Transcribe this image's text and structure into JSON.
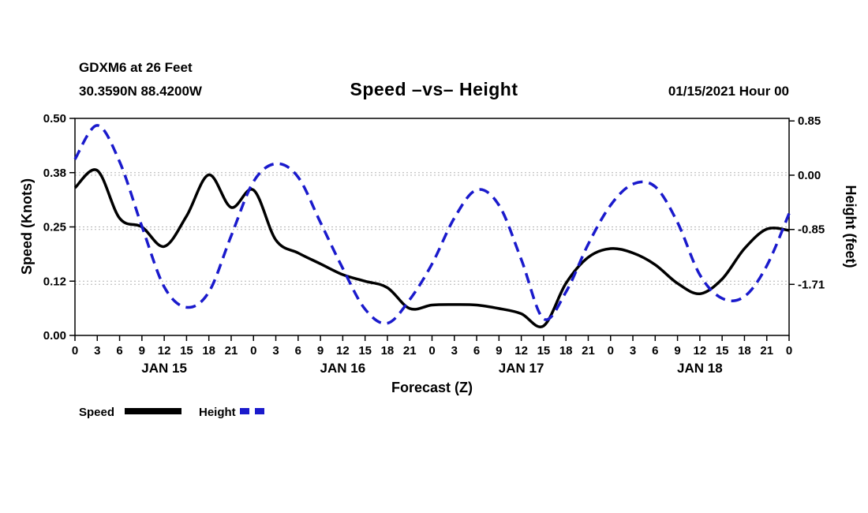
{
  "header": {
    "station_line1": "GDXM6 at 26 Feet",
    "station_line2": "30.3590N 88.4200W",
    "title": "Speed –vs– Height",
    "datetime": "01/15/2021 Hour 00"
  },
  "legend": {
    "speed_label": "Speed",
    "height_label": "Height"
  },
  "colors": {
    "speed": "#000000",
    "height": "#1a1acc",
    "grid": "#b3b3b3",
    "axis": "#000000"
  },
  "chart_data": {
    "type": "line",
    "title": "Speed –vs– Height",
    "xlabel": "Forecast (Z)",
    "ylabel_left": "Speed (Knots)",
    "ylabel_right": "Height (feet)",
    "x_hours": [
      0,
      3,
      6,
      9,
      12,
      15,
      18,
      21,
      24,
      27,
      30,
      33,
      36,
      39,
      42,
      45,
      48,
      51,
      54,
      57,
      60,
      63,
      66,
      69,
      72,
      75,
      78,
      81,
      84,
      87,
      90,
      93,
      96
    ],
    "x_tick_labels": [
      "0",
      "3",
      "6",
      "9",
      "12",
      "15",
      "18",
      "21",
      "0",
      "3",
      "6",
      "9",
      "12",
      "15",
      "18",
      "21",
      "0",
      "3",
      "6",
      "9",
      "12",
      "15",
      "18",
      "21",
      "0",
      "3",
      "6",
      "9",
      "12",
      "15",
      "18",
      "21",
      "0"
    ],
    "day_labels": [
      {
        "label": "JAN 15",
        "hour": 12
      },
      {
        "label": "JAN 16",
        "hour": 36
      },
      {
        "label": "JAN 17",
        "hour": 60
      },
      {
        "label": "JAN 18",
        "hour": 84
      }
    ],
    "left_axis": {
      "min": 0.0,
      "max": 0.5,
      "tick_values": [
        0.0,
        0.125,
        0.25,
        0.375,
        0.5
      ],
      "tick_labels": [
        "0.00",
        "0.12",
        "0.25",
        "0.38",
        "0.50"
      ],
      "grid_tick_values": [
        0.125,
        0.25,
        0.375
      ]
    },
    "right_axis": {
      "min": -2.51,
      "max": 0.89,
      "tick_values": [
        0.85,
        0.0,
        -0.85,
        -1.71
      ],
      "tick_labels": [
        "0.85",
        "0.00",
        "-0.85",
        "-1.71"
      ],
      "grid_tick_values": [
        0.0,
        -0.85,
        -1.71
      ]
    },
    "series": [
      {
        "name": "Speed",
        "axis": "left",
        "style": "solid",
        "color": "#000000",
        "values": [
          0.34,
          0.38,
          0.27,
          0.25,
          0.205,
          0.275,
          0.37,
          0.295,
          0.335,
          0.22,
          0.19,
          0.165,
          0.14,
          0.125,
          0.11,
          0.062,
          0.07,
          0.071,
          0.07,
          0.062,
          0.05,
          0.022,
          0.12,
          0.18,
          0.2,
          0.19,
          0.163,
          0.12,
          0.096,
          0.13,
          0.2,
          0.245,
          0.242
        ]
      },
      {
        "name": "Height",
        "axis": "right",
        "style": "dashed",
        "color": "#1a1acc",
        "values": [
          0.25,
          0.78,
          0.21,
          -0.8,
          -1.75,
          -2.07,
          -1.83,
          -0.95,
          -0.1,
          0.18,
          -0.03,
          -0.74,
          -1.46,
          -2.1,
          -2.32,
          -1.95,
          -1.39,
          -0.67,
          -0.23,
          -0.47,
          -1.32,
          -2.25,
          -1.83,
          -1.08,
          -0.47,
          -0.14,
          -0.18,
          -0.74,
          -1.56,
          -1.93,
          -1.9,
          -1.42,
          -0.6
        ]
      }
    ]
  }
}
